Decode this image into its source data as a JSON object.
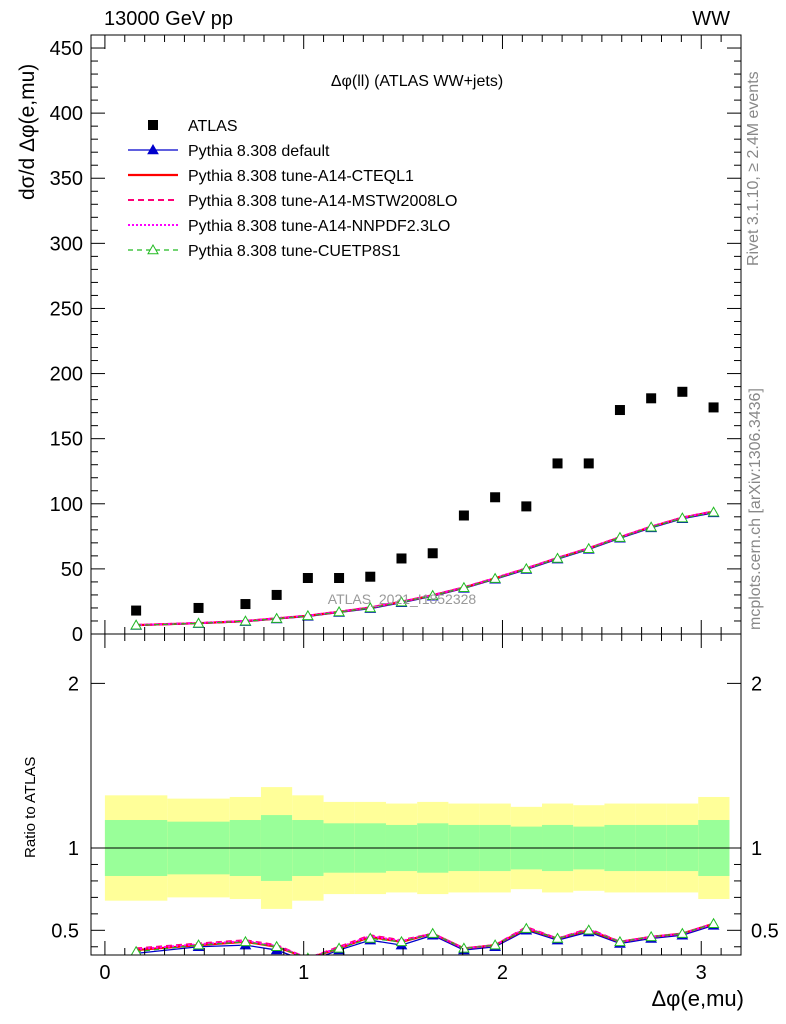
{
  "header": {
    "left": "13000 GeV pp",
    "right": "WW"
  },
  "side_labels": {
    "rivet": "Rivet 3.1.10, ≥ 2.4M events",
    "mcplots": "mcplots.cern.ch [arXiv:1306.3436]"
  },
  "colors": {
    "data": "#000000",
    "default": "#0000cc",
    "cteql1": "#ff0000",
    "mstw": "#ff0077",
    "nnpdf": "#ff00ff",
    "cuetp8s1": "#22bb22",
    "band_inner": "#99ff99",
    "band_outer": "#ffff99"
  },
  "chart_data": [
    {
      "type": "scatter",
      "title": "Δφ(ll) (ATLAS WW+jets)",
      "xlabel": "Δφ(e,mu)",
      "ylabel": "dσ/d Δφ(e,mu)",
      "xlim": [
        -0.07,
        3.2
      ],
      "ylim": [
        0,
        460
      ],
      "yticks": [
        0,
        50,
        100,
        150,
        200,
        250,
        300,
        350,
        400,
        450
      ],
      "xticks": [
        0,
        1,
        2,
        3
      ],
      "watermark": "ATLAS_2021_I1852328",
      "legend_placement": "top-left",
      "x": [
        0.157,
        0.471,
        0.707,
        0.864,
        1.021,
        1.178,
        1.335,
        1.492,
        1.649,
        1.806,
        1.963,
        2.12,
        2.277,
        2.434,
        2.591,
        2.748,
        2.905,
        3.062
      ],
      "series": [
        {
          "name": "ATLAS",
          "key": "data",
          "values": [
            18,
            20,
            23,
            30,
            43,
            43,
            44,
            58,
            62,
            91,
            105,
            98,
            131,
            131,
            172,
            181,
            186,
            174
          ]
        },
        {
          "name": "Pythia 8.308 default",
          "key": "default",
          "values": [
            6.5,
            8,
            9.5,
            11.5,
            13.5,
            16.5,
            19.5,
            24,
            29,
            35,
            42,
            49.5,
            57.5,
            65,
            73.5,
            81.5,
            88.5,
            93
          ]
        },
        {
          "name": "Pythia 8.308 tune-A14-CTEQL1",
          "key": "cteql1",
          "values": [
            6.8,
            8.3,
            9.9,
            11.9,
            14,
            17,
            20.3,
            24.7,
            29.7,
            35.7,
            42.8,
            50.3,
            58.3,
            65.8,
            74.3,
            82.3,
            89.3,
            94
          ]
        },
        {
          "name": "Pythia 8.308 tune-A14-MSTW2008LO",
          "key": "mstw",
          "values": [
            7,
            8.5,
            10.1,
            12.1,
            14.2,
            17.2,
            20.5,
            24.9,
            29.9,
            35.9,
            43,
            50.5,
            58.5,
            66,
            74.5,
            82.5,
            89.5,
            94.2
          ]
        },
        {
          "name": "Pythia 8.308 tune-A14-NNPDF2.3LO",
          "key": "nnpdf",
          "values": [
            6.9,
            8.4,
            10,
            12,
            14.1,
            17.1,
            20.4,
            24.8,
            29.8,
            35.8,
            42.9,
            50.4,
            58.4,
            65.9,
            74.4,
            82.4,
            89.4,
            94.1
          ]
        },
        {
          "name": "Pythia 8.308 tune-CUETP8S1",
          "key": "cuetp8s1",
          "values": [
            6.7,
            8.2,
            9.8,
            11.8,
            13.9,
            16.9,
            20,
            24.5,
            29.5,
            35.5,
            42.5,
            50,
            58,
            65.5,
            74,
            82,
            89,
            93.5
          ]
        }
      ]
    },
    {
      "type": "line",
      "ylabel": "Ratio to ATLAS",
      "xlim": [
        -0.07,
        3.2
      ],
      "ylim": [
        0.35,
        2.3
      ],
      "yticks": [
        0.5,
        1,
        2
      ],
      "xticks": [
        0,
        1,
        2,
        3
      ],
      "reference_line": 1,
      "bin_edges": [
        0,
        0.314,
        0.628,
        0.785,
        0.942,
        1.1,
        1.257,
        1.414,
        1.571,
        1.728,
        1.885,
        2.042,
        2.199,
        2.356,
        2.513,
        2.67,
        2.827,
        2.985,
        3.142
      ],
      "band_inner_half_width": [
        0.17,
        0.16,
        0.17,
        0.2,
        0.17,
        0.15,
        0.15,
        0.14,
        0.15,
        0.14,
        0.14,
        0.13,
        0.14,
        0.13,
        0.14,
        0.14,
        0.14,
        0.17
      ],
      "band_outer_half_width": [
        0.32,
        0.3,
        0.31,
        0.37,
        0.32,
        0.28,
        0.28,
        0.27,
        0.28,
        0.27,
        0.27,
        0.25,
        0.27,
        0.26,
        0.27,
        0.27,
        0.27,
        0.31
      ],
      "x": [
        0.157,
        0.471,
        0.707,
        0.864,
        1.021,
        1.178,
        1.335,
        1.492,
        1.649,
        1.806,
        1.963,
        2.12,
        2.277,
        2.434,
        2.591,
        2.748,
        2.905,
        3.062
      ],
      "series": [
        {
          "key": "default",
          "values": [
            0.36,
            0.4,
            0.41,
            0.38,
            0.31,
            0.38,
            0.44,
            0.41,
            0.47,
            0.38,
            0.4,
            0.5,
            0.44,
            0.49,
            0.42,
            0.45,
            0.47,
            0.53
          ]
        },
        {
          "key": "cteql1",
          "values": [
            0.38,
            0.41,
            0.43,
            0.4,
            0.33,
            0.39,
            0.46,
            0.43,
            0.48,
            0.39,
            0.41,
            0.51,
            0.45,
            0.5,
            0.43,
            0.46,
            0.48,
            0.54
          ]
        },
        {
          "key": "mstw",
          "values": [
            0.39,
            0.42,
            0.44,
            0.41,
            0.33,
            0.4,
            0.47,
            0.44,
            0.48,
            0.39,
            0.41,
            0.52,
            0.45,
            0.51,
            0.43,
            0.46,
            0.48,
            0.54
          ]
        },
        {
          "key": "nnpdf",
          "values": [
            0.385,
            0.415,
            0.435,
            0.405,
            0.33,
            0.395,
            0.465,
            0.435,
            0.48,
            0.39,
            0.41,
            0.515,
            0.45,
            0.505,
            0.43,
            0.46,
            0.48,
            0.54
          ]
        },
        {
          "key": "cuetp8s1",
          "values": [
            0.37,
            0.41,
            0.43,
            0.4,
            0.33,
            0.39,
            0.45,
            0.43,
            0.48,
            0.39,
            0.41,
            0.51,
            0.45,
            0.5,
            0.43,
            0.46,
            0.48,
            0.54
          ]
        }
      ]
    }
  ]
}
